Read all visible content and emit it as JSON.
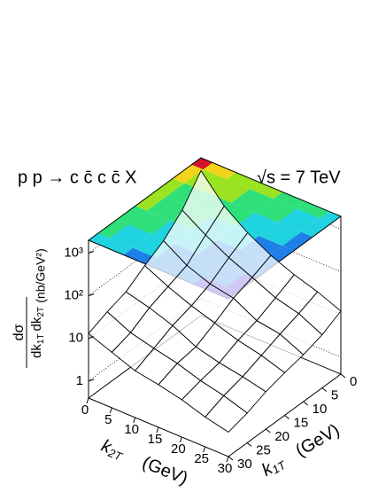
{
  "chart_data": {
    "type": "surface",
    "title": "p p → c c̄ c c̄ X",
    "subtitle": "√s = 7 TeV",
    "x_label": {
      "symbol": "k",
      "subscript": "2T",
      "unit": "(GeV)"
    },
    "y_label": {
      "symbol": "k",
      "subscript": "1T",
      "unit": "(GeV)"
    },
    "z_label": {
      "numerator": "dσ",
      "denominator": [
        "dk",
        "1T",
        "dk",
        "2T"
      ],
      "unit": "(nb/GeV²)"
    },
    "x": [
      0,
      5,
      10,
      15,
      20,
      25,
      30
    ],
    "y": [
      0,
      5,
      10,
      15,
      20,
      25,
      30
    ],
    "values": [
      [
        1000,
        250,
        100,
        50,
        30,
        20,
        12
      ],
      [
        250,
        110,
        55,
        32,
        18,
        13,
        7
      ],
      [
        100,
        45,
        28,
        22,
        11,
        9,
        5
      ],
      [
        55,
        30,
        18,
        12,
        8,
        6,
        4
      ],
      [
        28,
        20,
        13,
        7,
        5,
        4,
        3
      ],
      [
        20,
        11,
        8,
        6,
        4,
        3,
        2
      ],
      [
        13,
        8,
        5,
        4,
        3,
        2,
        1.5
      ]
    ],
    "xlim": [
      0,
      30
    ],
    "xticks": [
      0,
      5,
      10,
      15,
      20,
      25,
      30
    ],
    "ylim": [
      0,
      30
    ],
    "yticks": [
      0,
      5,
      10,
      15,
      20,
      25,
      30
    ],
    "zlim": [
      0.4,
      2000
    ],
    "log_z": true,
    "zticks": [
      1,
      10,
      {
        "value": 100,
        "label": "10²"
      },
      {
        "value": 1000,
        "label": "10³"
      }
    ],
    "grid": true,
    "palette": [
      "#5a0f8c",
      "#3d2bd6",
      "#1f7fe8",
      "#1fd3e0",
      "#2fe07a",
      "#9be320",
      "#f2d51a",
      "#f0641a",
      "#d6142a"
    ]
  }
}
